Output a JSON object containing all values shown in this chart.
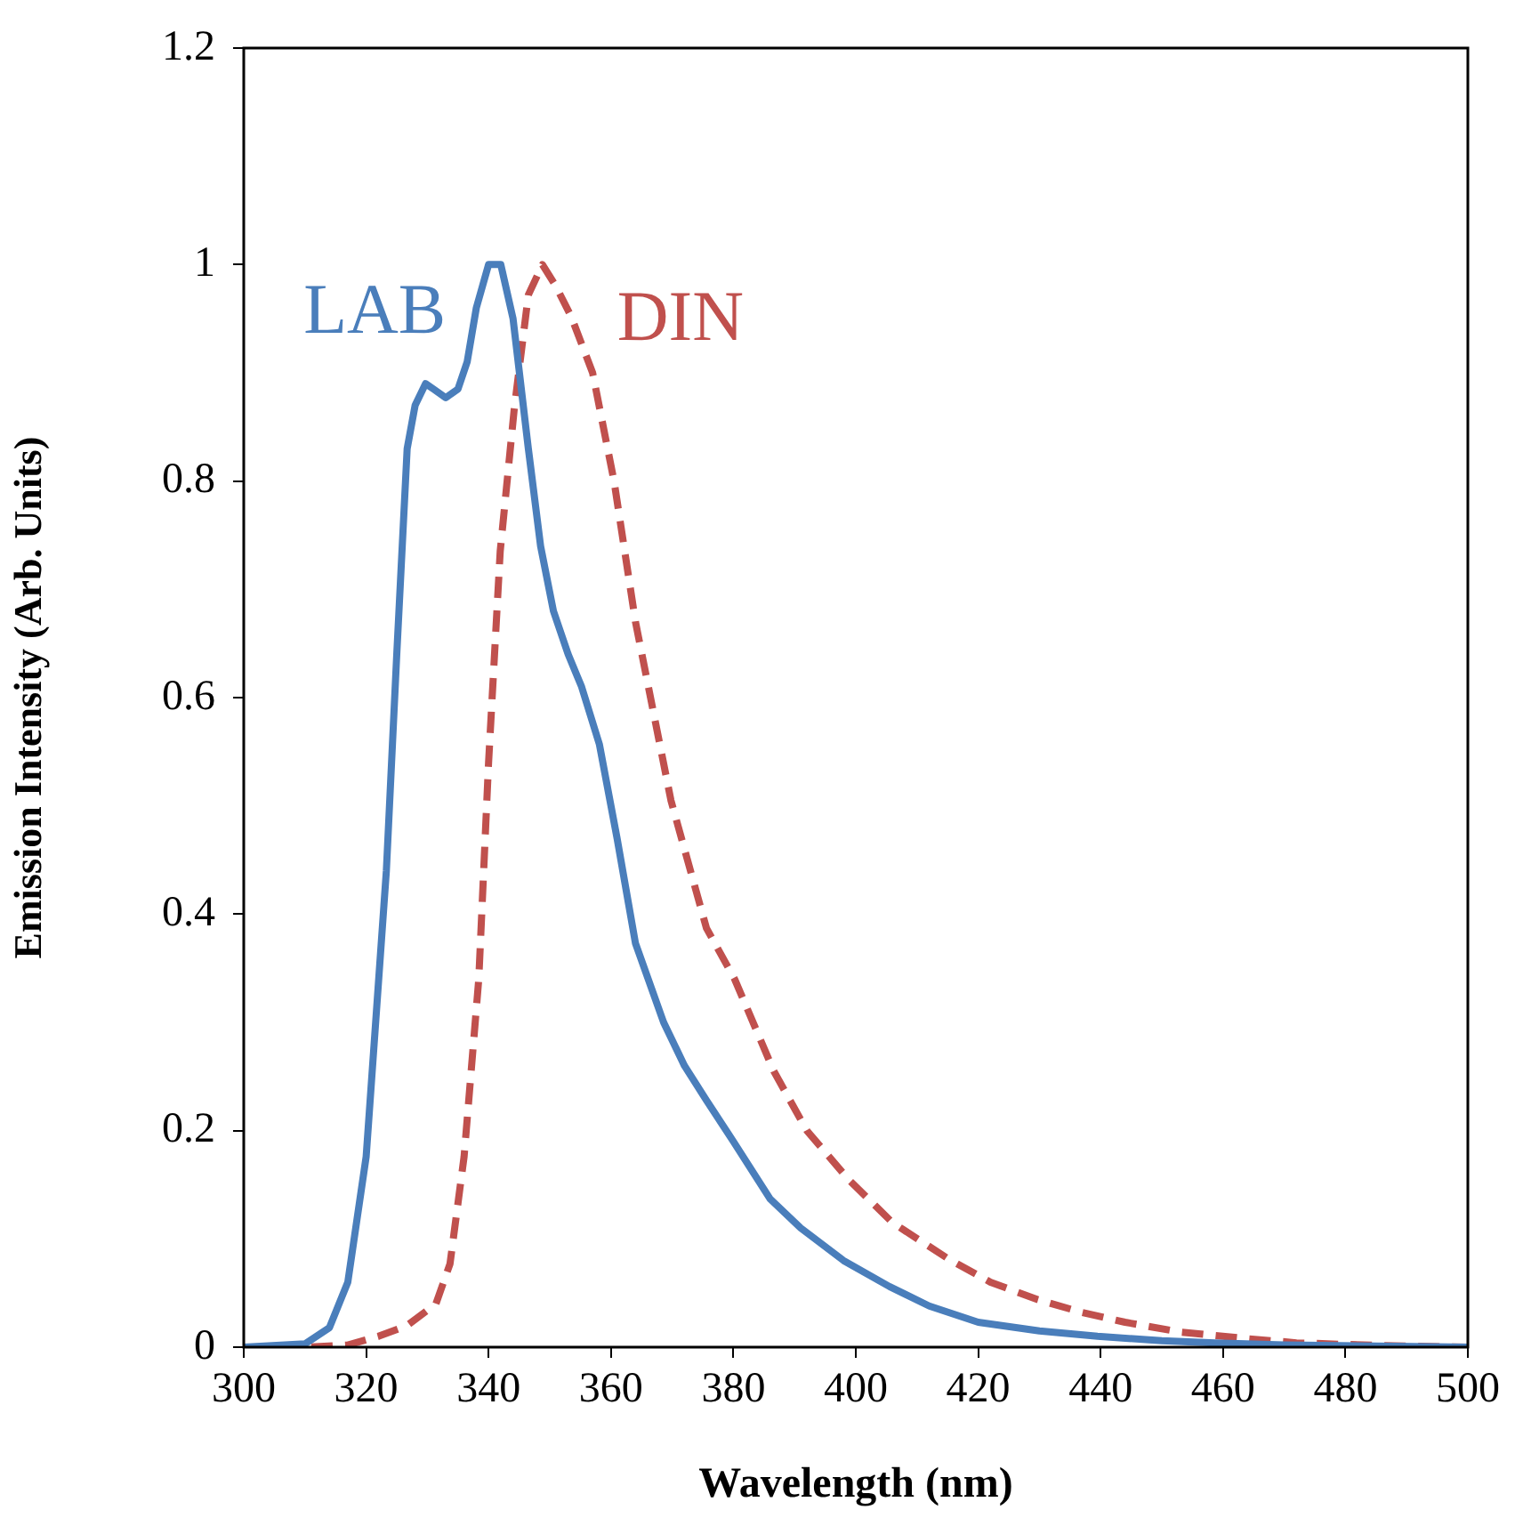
{
  "chart_data": {
    "type": "line",
    "xlabel": "Wavelength (nm)",
    "ylabel": "Emission Intensity (Arb. Units)",
    "xlim": [
      300,
      500
    ],
    "xticks": [
      300,
      320,
      340,
      360,
      380,
      400,
      420,
      440,
      460,
      480,
      500
    ],
    "ylim": [
      0,
      1.2
    ],
    "yticks": [
      0,
      0.2,
      0.4,
      0.6,
      0.8,
      1,
      1.2
    ],
    "grid": false,
    "legend": false,
    "marker": "none",
    "series": [
      {
        "name": "LAB",
        "color": "#4a7ebb",
        "line_style": "solid",
        "x": [
          300,
          310,
          314,
          317,
          320,
          323.3,
          325,
          326.7,
          328,
          329.7,
          331,
          333,
          335,
          336.5,
          338,
          340,
          342,
          344,
          346.5,
          348.5,
          350.6,
          353,
          355.2,
          358.1,
          361,
          364,
          368.6,
          372,
          375.6,
          380,
          386,
          391,
          398,
          405.5,
          412,
          420,
          430,
          439.5,
          450,
          458.7,
          470,
          485,
          500
        ],
        "values": [
          0,
          0.003,
          0.018,
          0.06,
          0.176,
          0.44,
          0.64,
          0.83,
          0.87,
          0.89,
          0.885,
          0.877,
          0.885,
          0.91,
          0.96,
          1,
          1,
          0.95,
          0.83,
          0.74,
          0.68,
          0.64,
          0.61,
          0.557,
          0.47,
          0.373,
          0.3,
          0.26,
          0.228,
          0.19,
          0.137,
          0.11,
          0.08,
          0.056,
          0.038,
          0.023,
          0.015,
          0.01,
          0.006,
          0.004,
          0.002,
          0.001,
          0
        ]
      },
      {
        "name": "DIN",
        "color": "#c0504d",
        "line_style": "dashed",
        "x": [
          300,
          310,
          317,
          322,
          326.7,
          331.4,
          333.7,
          336,
          338.4,
          340,
          341.9,
          344.2,
          346.5,
          348.8,
          351,
          353.5,
          357,
          360.5,
          364,
          369.8,
          375.6,
          380.2,
          386.6,
          392,
          398.8,
          406,
          415,
          422,
          429.7,
          437,
          444,
          453,
          463.7,
          472,
          483,
          490,
          500
        ],
        "values": [
          0,
          0,
          0.002,
          0.01,
          0.02,
          0.04,
          0.077,
          0.176,
          0.34,
          0.54,
          0.735,
          0.867,
          0.972,
          1,
          0.98,
          0.952,
          0.9,
          0.8,
          0.67,
          0.505,
          0.387,
          0.34,
          0.255,
          0.2,
          0.155,
          0.115,
          0.082,
          0.06,
          0.044,
          0.032,
          0.023,
          0.014,
          0.008,
          0.004,
          0.002,
          0.001,
          0
        ]
      }
    ]
  }
}
